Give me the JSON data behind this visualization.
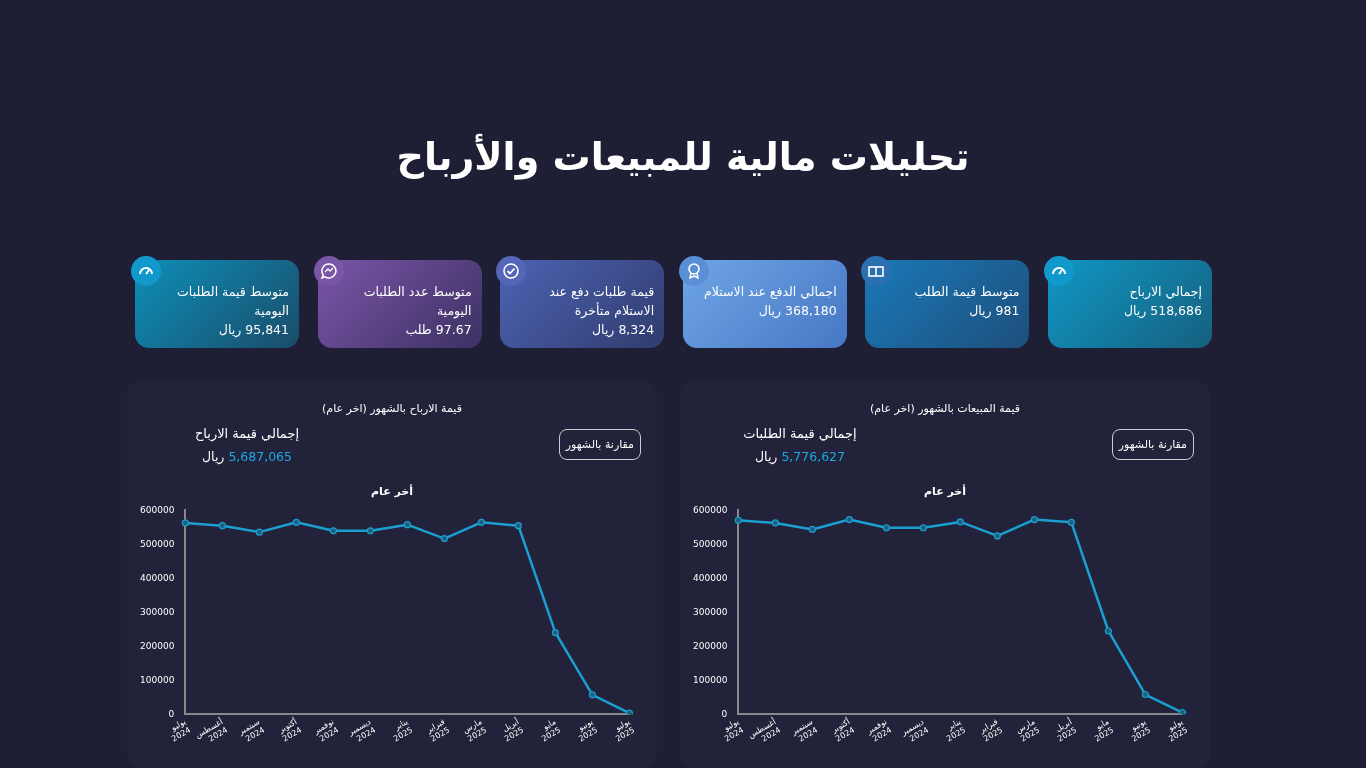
{
  "chart_data": [
    {
      "type": "other",
      "title": "تحليلات مالية للمبيعات والأرباح",
      "annotations": [
        "إجمالي الارباح",
        "518,686 ريال",
        "متوسط قيمة الطلب",
        "981 ريال",
        "اجمالي الدفع عند الاستلام",
        "368,180 ريال",
        "قيمة طلبات دفع عند الاستلام متأخرة",
        "8,324 ريال",
        "متوسط عدد الطلبات اليومية",
        "97.67 طلب",
        "متوسط قيمة الطلبات اليومية",
        "95,841 ريال"
      ]
    },
    {
      "type": "line",
      "title": "قيمة المبيعات بالشهور (اخر عام)",
      "subtitle": "أخر عام",
      "annotations": [
        "إجمالي قيمة الطلبات",
        "5,776,627",
        "ريال",
        "مقارنة بالشهور"
      ],
      "categories": [
        "يوليو 2024",
        "أغسطس 2024",
        "سبتمبر 2024",
        "أكتوبر 2024",
        "نوفمبر 2024",
        "ديسمبر 2024",
        "يناير 2025",
        "فبراير 2025",
        "مارس 2025",
        "أبريل 2025",
        "مايو 2025",
        "يونيو 2025",
        "يوليو 2025"
      ],
      "series": [
        {
          "color": "#1a9fd0",
          "values": [
            571000,
            563000,
            544000,
            573000,
            549000,
            549000,
            566000,
            525000,
            573000,
            565000,
            245000,
            58000,
            5000
          ]
        }
      ],
      "ylim": [
        0,
        600000
      ],
      "yticks": [
        0,
        100000,
        200000,
        300000,
        400000,
        500000,
        600000
      ],
      "grid": false,
      "legend": false,
      "marker": "circle"
    },
    {
      "type": "line",
      "title": "قيمة الارباح بالشهور (اخر عام)",
      "subtitle": "أخر عام",
      "annotations": [
        "إجمالي قيمة الارباح",
        "5,687,065",
        "ريال",
        "مقارنة بالشهور"
      ],
      "categories": [
        "يوليو 2024",
        "أغسطس 2024",
        "سبتمبر 2024",
        "أكتوبر 2024",
        "نوفمبر 2024",
        "ديسمبر 2024",
        "يناير 2025",
        "فبراير 2025",
        "مارس 2025",
        "أبريل 2025",
        "مايو 2025",
        "يونيو 2025",
        "يوليو 2025"
      ],
      "series": [
        {
          "color": "#1a9fd0",
          "values": [
            563000,
            555000,
            536000,
            565000,
            540000,
            540000,
            558000,
            517000,
            565000,
            555000,
            240000,
            57000,
            3000
          ]
        }
      ],
      "ylim": [
        0,
        600000
      ],
      "yticks": [
        0,
        100000,
        200000,
        300000,
        400000,
        500000,
        600000
      ],
      "grid": false,
      "legend": false,
      "marker": "circle"
    }
  ]
}
